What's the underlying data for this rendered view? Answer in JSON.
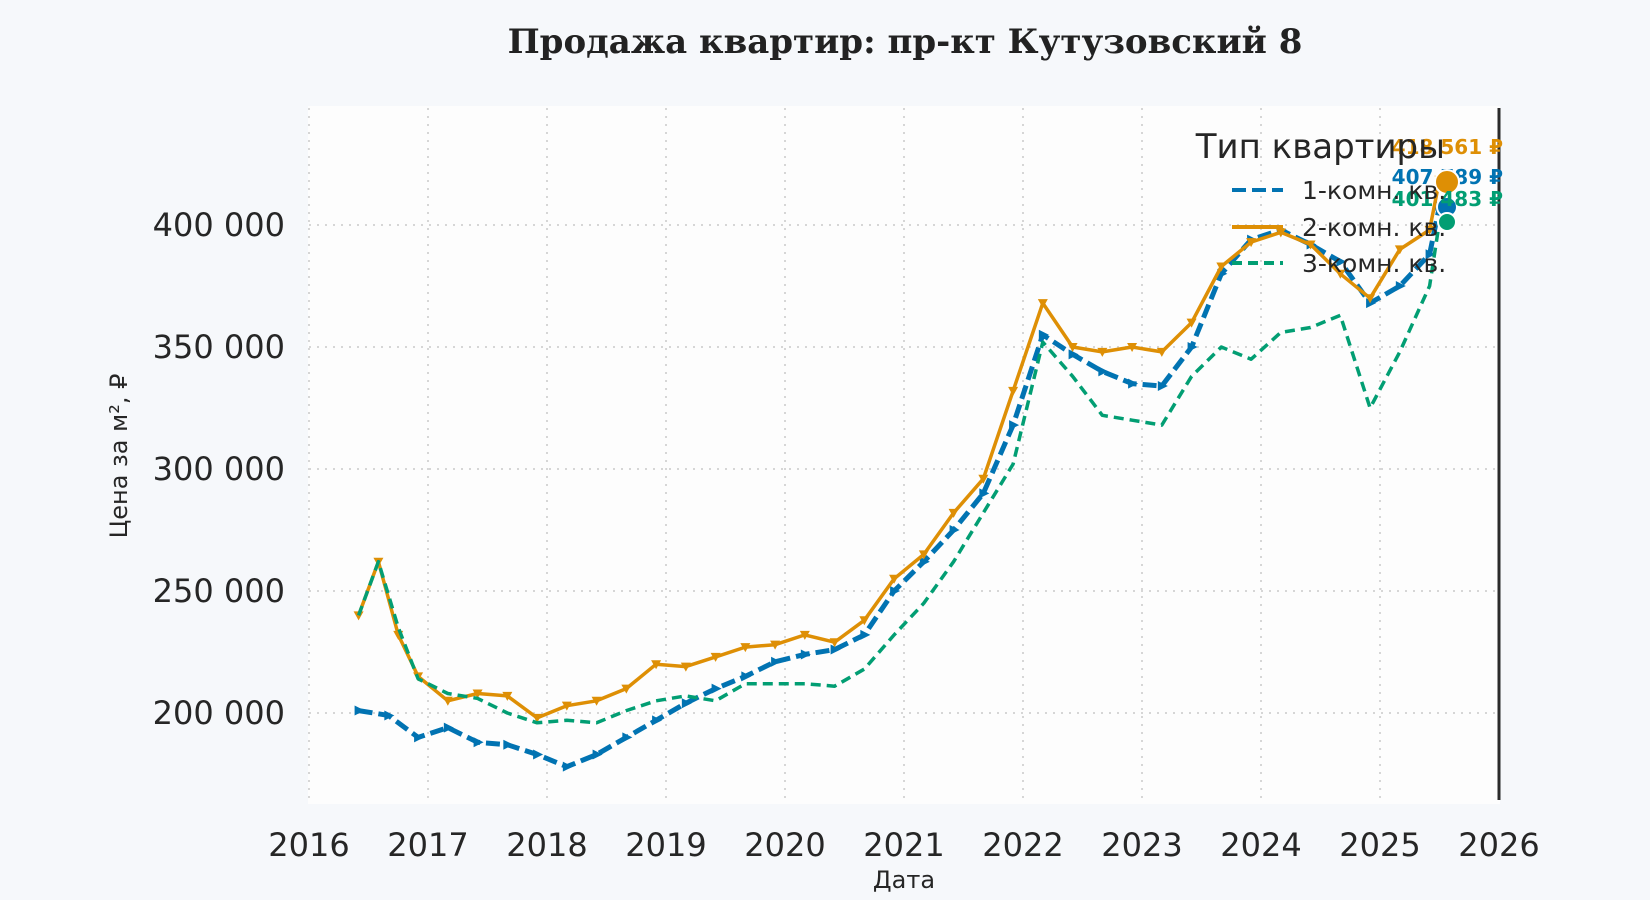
{
  "chart_data": {
    "type": "line",
    "title": "Продажа квартир: пр-кт Кутузовский 8",
    "xlabel": "Дата",
    "ylabel": "Цена за м², ₽",
    "x_ticks": [
      "2016",
      "2017",
      "2018",
      "2019",
      "2020",
      "2021",
      "2022",
      "2023",
      "2024",
      "2025",
      "2026"
    ],
    "y_ticks": [
      "200 000",
      "250 000",
      "300 000",
      "350 000",
      "400 000"
    ],
    "xlim": [
      "2016",
      "2026"
    ],
    "ylim": [
      165000,
      450000
    ],
    "grid": true,
    "legend": {
      "title": "Тип квартиры",
      "position": "top-right"
    },
    "series": [
      {
        "name": "1-комн. кв.",
        "color": "#0173b2",
        "end_value": 407789,
        "end_label": "407 789 ₽",
        "x": [
          "2016-06",
          "2016-09",
          "2016-12",
          "2017-03",
          "2017-06",
          "2017-09",
          "2017-12",
          "2018-03",
          "2018-06",
          "2018-09",
          "2018-12",
          "2019-03",
          "2019-06",
          "2019-09",
          "2019-12",
          "2020-03",
          "2020-06",
          "2020-09",
          "2020-12",
          "2021-03",
          "2021-06",
          "2021-09",
          "2021-12",
          "2022-03",
          "2022-06",
          "2022-09",
          "2022-12",
          "2023-03",
          "2023-06",
          "2023-09",
          "2023-12",
          "2024-03",
          "2024-06",
          "2024-09",
          "2024-12",
          "2025-03",
          "2025-06",
          "2025-07"
        ],
        "values": [
          201000,
          199000,
          190000,
          194000,
          188000,
          187000,
          183000,
          178000,
          183000,
          190000,
          197000,
          204000,
          210000,
          215000,
          221000,
          224000,
          226000,
          232000,
          250000,
          262000,
          275000,
          290000,
          318000,
          355000,
          347000,
          340000,
          335000,
          334000,
          350000,
          380000,
          394000,
          398000,
          392000,
          385000,
          368000,
          375000,
          388000,
          407789
        ]
      },
      {
        "name": "2-комн. кв.",
        "color": "#de8f05",
        "end_value": 418561,
        "end_label": "418 561 ₽",
        "x": [
          "2016-06",
          "2016-08",
          "2016-10",
          "2016-12",
          "2017-03",
          "2017-06",
          "2017-09",
          "2017-12",
          "2018-03",
          "2018-06",
          "2018-09",
          "2018-12",
          "2019-03",
          "2019-06",
          "2019-09",
          "2019-12",
          "2020-03",
          "2020-06",
          "2020-09",
          "2020-12",
          "2021-03",
          "2021-06",
          "2021-09",
          "2021-12",
          "2022-03",
          "2022-06",
          "2022-09",
          "2022-12",
          "2023-03",
          "2023-06",
          "2023-09",
          "2023-12",
          "2024-03",
          "2024-06",
          "2024-09",
          "2024-12",
          "2025-03",
          "2025-06",
          "2025-07"
        ],
        "values": [
          240000,
          262000,
          232000,
          215000,
          205000,
          208000,
          207000,
          198000,
          203000,
          205000,
          210000,
          220000,
          219000,
          223000,
          227000,
          228000,
          232000,
          229000,
          238000,
          255000,
          265000,
          282000,
          296000,
          332000,
          368000,
          350000,
          348000,
          350000,
          348000,
          360000,
          383000,
          393000,
          397000,
          392000,
          380000,
          370000,
          390000,
          398000,
          418561
        ]
      },
      {
        "name": "3-комн. кв.",
        "color": "#029e73",
        "end_value": 401483,
        "end_label": "401 483 ₽",
        "x": [
          "2016-06",
          "2016-08",
          "2016-10",
          "2016-12",
          "2017-03",
          "2017-06",
          "2017-09",
          "2017-12",
          "2018-03",
          "2018-06",
          "2018-09",
          "2018-12",
          "2019-03",
          "2019-06",
          "2019-09",
          "2019-12",
          "2020-03",
          "2020-06",
          "2020-09",
          "2020-12",
          "2021-03",
          "2021-06",
          "2021-09",
          "2021-12",
          "2022-03",
          "2022-06",
          "2022-09",
          "2022-12",
          "2023-03",
          "2023-06",
          "2023-09",
          "2023-12",
          "2024-03",
          "2024-06",
          "2024-09",
          "2024-12",
          "2025-03",
          "2025-06",
          "2025-07"
        ],
        "values": [
          240000,
          262000,
          235000,
          214000,
          208000,
          206000,
          200000,
          196000,
          197000,
          196000,
          201000,
          205000,
          207000,
          205000,
          212000,
          212000,
          212000,
          211000,
          218000,
          232000,
          245000,
          262000,
          282000,
          302000,
          352000,
          338000,
          322000,
          320000,
          318000,
          338000,
          350000,
          345000,
          356000,
          358000,
          363000,
          325000,
          348000,
          375000,
          401483
        ]
      }
    ]
  }
}
